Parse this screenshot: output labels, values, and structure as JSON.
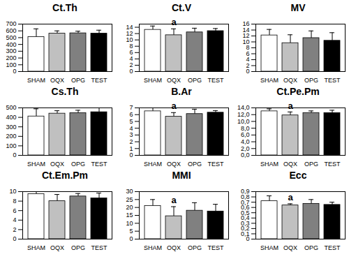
{
  "chart_data": [
    {
      "type": "bar",
      "title": "Ct.Th",
      "categories": [
        "SHAM",
        "OQX",
        "OPG",
        "TEST"
      ],
      "values": [
        510,
        560,
        565,
        560
      ],
      "errors": [
        120,
        40,
        30,
        50
      ],
      "colors": [
        "#ffffff",
        "#c0c0c0",
        "#808080",
        "#000000"
      ],
      "ylim": [
        0,
        700
      ],
      "yticks": [
        0,
        100,
        200,
        300,
        400,
        500,
        600,
        700
      ],
      "annotations": []
    },
    {
      "type": "bar",
      "title": "Ct.V",
      "categories": [
        "SHAM",
        "OQX",
        "OPG",
        "TEST"
      ],
      "values": [
        13.2,
        11.5,
        12.4,
        12.8
      ],
      "errors": [
        1.2,
        2.0,
        1.3,
        0.8
      ],
      "colors": [
        "#ffffff",
        "#c0c0c0",
        "#808080",
        "#000000"
      ],
      "ylim": [
        0,
        15
      ],
      "yticks": [
        0,
        2,
        4,
        6,
        8,
        10,
        12,
        14
      ],
      "annotations": [
        {
          "category": "OQX",
          "text": "a"
        }
      ]
    },
    {
      "type": "bar",
      "title": "MV",
      "categories": [
        "SHAM",
        "OQX",
        "OPG",
        "TEST"
      ],
      "values": [
        12.2,
        9.6,
        11.3,
        10.4
      ],
      "errors": [
        2.0,
        2.8,
        2.4,
        2.7
      ],
      "colors": [
        "#ffffff",
        "#c0c0c0",
        "#808080",
        "#000000"
      ],
      "ylim": [
        0,
        16
      ],
      "yticks": [
        0,
        2,
        4,
        6,
        8,
        10,
        12,
        14,
        16
      ],
      "annotations": []
    },
    {
      "type": "bar",
      "title": "Cs.Th",
      "categories": [
        "SHAM",
        "OQX",
        "OPG",
        "TEST"
      ],
      "values": [
        410,
        440,
        445,
        455
      ],
      "errors": [
        80,
        30,
        30,
        50
      ],
      "colors": [
        "#ffffff",
        "#c0c0c0",
        "#808080",
        "#000000"
      ],
      "ylim": [
        0,
        500
      ],
      "yticks": [
        0,
        100,
        200,
        300,
        400,
        500
      ],
      "annotations": []
    },
    {
      "type": "bar",
      "title": "B.Ar",
      "categories": [
        "SHAM",
        "OQX",
        "OPG",
        "TEST"
      ],
      "values": [
        6.5,
        5.7,
        6.1,
        6.3
      ],
      "errors": [
        0.5,
        0.6,
        0.7,
        0.3
      ],
      "colors": [
        "#ffffff",
        "#c0c0c0",
        "#808080",
        "#000000"
      ],
      "ylim": [
        0,
        7
      ],
      "yticks": [
        0,
        1,
        2,
        3,
        4,
        5,
        6,
        7
      ],
      "annotations": [
        {
          "category": "OQX",
          "text": "a"
        }
      ]
    },
    {
      "type": "bar",
      "title": "Ct.Pe.Pm",
      "categories": [
        "SHAM",
        "OQX",
        "OPG",
        "TEST"
      ],
      "values": [
        13.0,
        11.8,
        12.5,
        12.5
      ],
      "errors": [
        0.7,
        1.0,
        0.6,
        0.8
      ],
      "colors": [
        "#ffffff",
        "#c0c0c0",
        "#808080",
        "#000000"
      ],
      "ylim": [
        0,
        14
      ],
      "yticks": [
        {
          "value": 0,
          "label": "0,0"
        },
        {
          "value": 2,
          "label": "2,0"
        },
        {
          "value": 4,
          "label": "4,0"
        },
        {
          "value": 6,
          "label": "6,0"
        },
        {
          "value": 8,
          "label": "8,0"
        },
        {
          "value": 10,
          "label": "10,0"
        },
        {
          "value": 12,
          "label": "12,0"
        },
        {
          "value": 14,
          "label": "14,0"
        }
      ],
      "annotations": [
        {
          "category": "OQX",
          "text": "a"
        }
      ]
    },
    {
      "type": "bar",
      "title": "Ct.Em.Pm",
      "categories": [
        "SHAM",
        "OQX",
        "OPG",
        "TEST"
      ],
      "values": [
        9.5,
        8.0,
        9.0,
        8.6
      ],
      "errors": [
        0.8,
        1.4,
        0.6,
        1.1
      ],
      "colors": [
        "#ffffff",
        "#c0c0c0",
        "#808080",
        "#000000"
      ],
      "ylim": [
        0,
        10
      ],
      "yticks": [
        0,
        2,
        4,
        6,
        8,
        10
      ],
      "annotations": []
    },
    {
      "type": "bar",
      "title": "MMI",
      "categories": [
        "SHAM",
        "OQX",
        "OPG",
        "TEST"
      ],
      "values": [
        21,
        14.5,
        18,
        17.5
      ],
      "errors": [
        4,
        6,
        5,
        4.5
      ],
      "colors": [
        "#ffffff",
        "#c0c0c0",
        "#808080",
        "#000000"
      ],
      "ylim": [
        0,
        30
      ],
      "yticks": [
        0,
        5,
        10,
        15,
        20,
        25,
        30
      ],
      "annotations": [
        {
          "category": "OQX",
          "text": "a"
        }
      ]
    },
    {
      "type": "bar",
      "title": "Ecc",
      "categories": [
        "SHAM",
        "OQX",
        "OPG",
        "TEST"
      ],
      "values": [
        0.72,
        0.64,
        0.67,
        0.65
      ],
      "errors": [
        0.1,
        0.03,
        0.08,
        0.05
      ],
      "colors": [
        "#ffffff",
        "#c0c0c0",
        "#808080",
        "#000000"
      ],
      "ylim": [
        0,
        0.9
      ],
      "yticks": [
        0,
        {
          "value": 0.1,
          "label": "0,1"
        },
        {
          "value": 0.2,
          "label": "0,2"
        },
        {
          "value": 0.3,
          "label": "0,3"
        },
        {
          "value": 0.4,
          "label": "0,4"
        },
        {
          "value": 0.5,
          "label": "0,5"
        },
        {
          "value": 0.6,
          "label": "0,6"
        },
        {
          "value": 0.7,
          "label": "0,7"
        },
        {
          "value": 0.8,
          "label": "0,8"
        },
        {
          "value": 0.9,
          "label": "0,9"
        }
      ],
      "annotations": [
        {
          "category": "OQX",
          "text": "a"
        }
      ]
    }
  ]
}
